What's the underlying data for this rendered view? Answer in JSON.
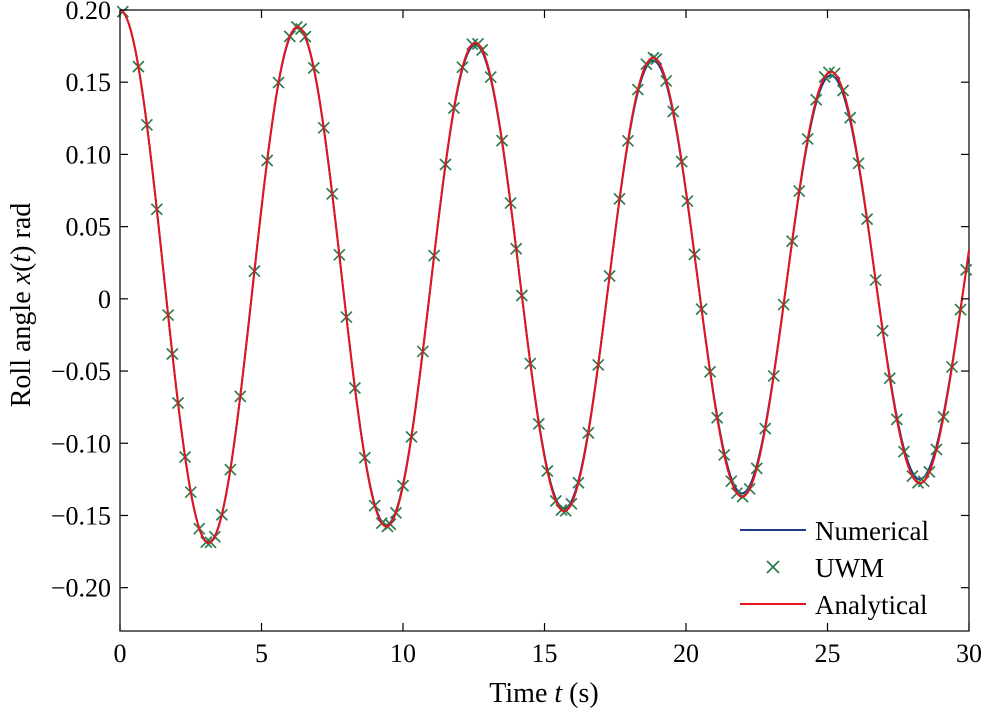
{
  "chart_data": {
    "type": "line",
    "title": "",
    "xlabel": {
      "pre": "Time ",
      "var": "t",
      "post": " (s)"
    },
    "ylabel": {
      "pre": "Roll angle ",
      "var1": "x",
      "mid1": "(",
      "var2": "t",
      "mid2": ") rad"
    },
    "xlim": [
      0,
      30
    ],
    "ylim": [
      -0.23,
      0.2
    ],
    "xticks": [
      0,
      5,
      10,
      15,
      20,
      25,
      30
    ],
    "xtick_labels": [
      "0",
      "5",
      "10",
      "15",
      "20",
      "25",
      "30"
    ],
    "yticks": [
      0.2,
      0.15,
      0.1,
      0.05,
      0,
      -0.05,
      -0.1,
      -0.15,
      -0.2
    ],
    "ytick_labels": [
      "0.20",
      "0.15",
      "0.10",
      "0.05",
      "0",
      "−0.05",
      "−0.10",
      "−0.15",
      "−0.20"
    ],
    "grid": false,
    "legend_position": "bottom-right",
    "model": {
      "description": "damped oscillation x(t) = c + A*exp(-d*t)*cos(w*t)",
      "offset": 0.0125,
      "amplitude": 0.1875,
      "decay": 0.0103,
      "omega": 1.0
    },
    "series": [
      {
        "name": "Numerical",
        "style": "line",
        "color": "#1f3a8a",
        "t_start": 0,
        "t_end": 30,
        "decay": 0.011
      },
      {
        "name": "UWM",
        "style": "marker-x",
        "color": "#2e7d4f",
        "t": [
          0.1,
          0.65,
          0.95,
          1.3,
          1.7,
          1.85,
          2.05,
          2.3,
          2.5,
          2.8,
          3.05,
          3.2,
          3.35,
          3.6,
          3.9,
          4.25,
          4.75,
          5.2,
          5.6,
          6.0,
          6.25,
          6.4,
          6.55,
          6.85,
          7.2,
          7.5,
          7.75,
          8.0,
          8.3,
          8.65,
          9.0,
          9.25,
          9.45,
          9.55,
          9.75,
          10.0,
          10.3,
          10.7,
          11.1,
          11.5,
          11.8,
          12.1,
          12.45,
          12.65,
          12.8,
          13.1,
          13.5,
          13.8,
          14.0,
          14.2,
          14.5,
          14.8,
          15.1,
          15.4,
          15.6,
          15.75,
          15.95,
          16.2,
          16.55,
          16.9,
          17.3,
          17.65,
          17.95,
          18.3,
          18.6,
          18.85,
          18.95,
          19.3,
          19.55,
          19.85,
          20.05,
          20.3,
          20.55,
          20.85,
          21.1,
          21.35,
          21.6,
          21.8,
          22.0,
          22.25,
          22.5,
          22.8,
          23.1,
          23.45,
          23.75,
          24.0,
          24.3,
          24.6,
          24.9,
          25.05,
          25.25,
          25.55,
          25.8,
          26.1,
          26.4,
          26.7,
          26.95,
          27.2,
          27.45,
          27.7,
          28.0,
          28.2,
          28.4,
          28.6,
          28.85,
          29.1,
          29.4,
          29.7,
          29.9
        ]
      },
      {
        "name": "Analytical",
        "style": "line",
        "color": "#e8141c",
        "t_start": 0,
        "t_end": 30,
        "decay": 0.0103
      }
    ]
  }
}
